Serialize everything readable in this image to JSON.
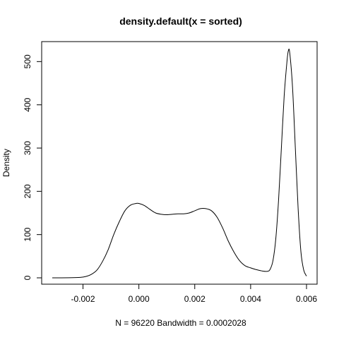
{
  "chart_data": {
    "type": "line",
    "title": "density.default(x = sorted)",
    "xlabel": "N = 96220   Bandwidth = 0.0002028",
    "ylabel": "Density",
    "xlim": [
      -0.0031,
      0.006
    ],
    "ylim": [
      0,
      525
    ],
    "x_ticks": [
      -0.002,
      0.0,
      0.002,
      0.004,
      0.006
    ],
    "x_tick_labels": [
      "-0.002",
      "0.000",
      "0.002",
      "0.004",
      "0.006"
    ],
    "y_ticks": [
      0,
      100,
      200,
      300,
      400,
      500
    ],
    "y_tick_labels": [
      "0",
      "100",
      "200",
      "300",
      "400",
      "500"
    ],
    "grid": false,
    "series": [
      {
        "color": "#000000",
        "x": [
          -0.0031,
          -0.0025,
          -0.0021,
          -0.0019,
          -0.0017,
          -0.0015,
          -0.0013,
          -0.0011,
          -0.0009,
          -0.0007,
          -0.0005,
          -0.0003,
          -0.0001,
          0.0,
          0.0002,
          0.0004,
          0.0006,
          0.0008,
          0.001,
          0.0012,
          0.0014,
          0.0016,
          0.0018,
          0.002,
          0.0022,
          0.0024,
          0.0026,
          0.0028,
          0.003,
          0.0032,
          0.0034,
          0.0036,
          0.0038,
          0.004,
          0.0042,
          0.0044,
          0.0046,
          0.0047,
          0.0048,
          0.0049,
          0.005,
          0.0051,
          0.0052,
          0.0053,
          0.00535,
          0.0054,
          0.0055,
          0.0056,
          0.0057,
          0.0058,
          0.0059,
          0.006
        ],
        "y": [
          0,
          0.2,
          1,
          3,
          8,
          18,
          38,
          65,
          100,
          130,
          155,
          168,
          172,
          172,
          167,
          158,
          150,
          147,
          146,
          147,
          148,
          148,
          150,
          155,
          160,
          160,
          155,
          140,
          115,
          85,
          60,
          40,
          28,
          23,
          19,
          16,
          15,
          20,
          40,
          90,
          180,
          300,
          420,
          500,
          525,
          520,
          440,
          300,
          160,
          60,
          18,
          4
        ]
      }
    ]
  }
}
